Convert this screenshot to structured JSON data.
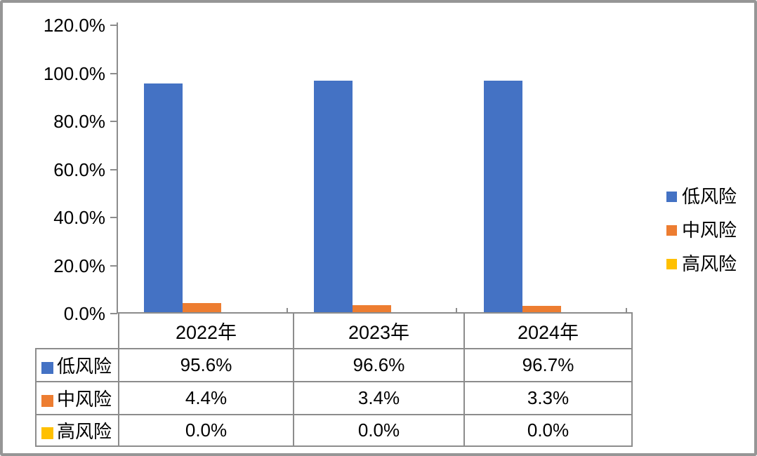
{
  "chart_data": {
    "type": "bar",
    "title": "",
    "xlabel": "",
    "ylabel": "",
    "categories": [
      "2022年",
      "2023年",
      "2024年"
    ],
    "series": [
      {
        "name": "低风险",
        "color": "#4472C4",
        "values": [
          95.6,
          96.6,
          96.7
        ],
        "labels": [
          "95.6%",
          "96.6%",
          "96.7%"
        ]
      },
      {
        "name": "中风险",
        "color": "#ED7D31",
        "values": [
          4.4,
          3.4,
          3.3
        ],
        "labels": [
          "4.4%",
          "3.4%",
          "3.3%"
        ]
      },
      {
        "name": "高风险",
        "color": "#FFC000",
        "values": [
          0.0,
          0.0,
          0.0
        ],
        "labels": [
          "0.0%",
          "0.0%",
          "0.0%"
        ]
      }
    ],
    "ylim": [
      0,
      120
    ],
    "yticks": [
      "120.0%",
      "100.0%",
      "80.0%",
      "60.0%",
      "40.0%",
      "20.0%",
      "0.0%"
    ],
    "grid": false,
    "legend_position": "right",
    "data_table_shown": true,
    "axis_color": "#8C8C8C"
  }
}
